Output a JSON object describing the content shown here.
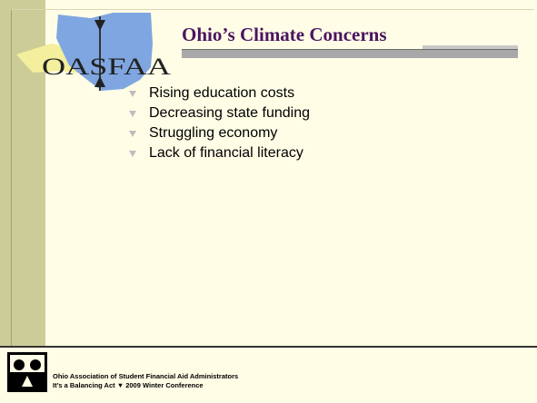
{
  "logo": {
    "text": "OASFAA"
  },
  "title": "Ohio’s Climate Concerns",
  "bullets": [
    "Rising education costs",
    "Decreasing state funding",
    "Struggling economy",
    "Lack of financial literacy"
  ],
  "footer": {
    "line1": "Ohio Association of Student Financial Aid Administrators",
    "line2": "It’s a Balancing Act ▼ 2009 Winter Conference"
  }
}
